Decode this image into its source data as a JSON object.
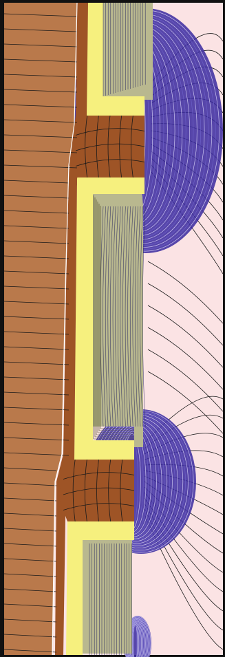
{
  "figure": {
    "colors": {
      "frame": "#111111",
      "background": "#fbe3e4",
      "copper": "#b9794b",
      "copper_dark": "#9e5426",
      "insulation_yellow": "#f6f07e",
      "insulation_khaki": "#b9b88f",
      "field_blue": "#3a2aa0",
      "field_line": "#1a1a1a"
    },
    "layers": [
      {
        "name": "conductor-core",
        "fill_key": "copper"
      },
      {
        "name": "upper-insulation-layer",
        "fill_key": "insulation_yellow"
      },
      {
        "name": "middle-insulation-layer",
        "fill_key": "insulation_yellow"
      },
      {
        "name": "lower-insulation-layer",
        "fill_key": "insulation_yellow"
      },
      {
        "name": "upper-electrode-block",
        "fill_key": "copper_dark"
      },
      {
        "name": "lower-electrode-block",
        "fill_key": "copper_dark"
      },
      {
        "name": "upper-field-bulge",
        "fill_key": "field_blue"
      },
      {
        "name": "middle-field-bulge",
        "fill_key": "field_blue"
      },
      {
        "name": "lower-field-bulge",
        "fill_key": "field_blue"
      }
    ]
  }
}
